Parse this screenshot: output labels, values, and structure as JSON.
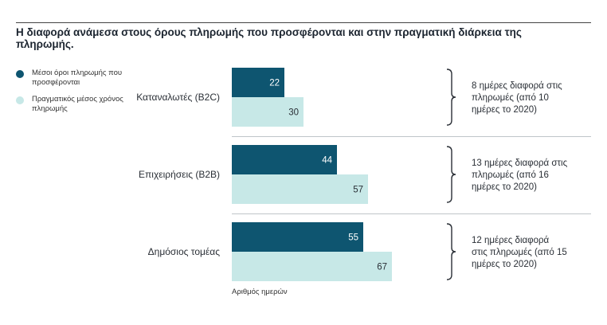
{
  "title": "Η διαφορά ανάμεσα στους όρους πληρωμής που προσφέρονται και στην πραγματική διάρκεια της πληρωμής.",
  "colors": {
    "offered": "#0e5570",
    "actual": "#c7e8e7",
    "offered_text": "#ffffff",
    "actual_text": "#2a2f36"
  },
  "legend": [
    {
      "label": "Μέσοι όροι πληρωμής που προσφέρονται",
      "color": "#0e5570"
    },
    {
      "label": "Πραγματικός μέσος χρόνος πληρωμής",
      "color": "#c7e8e7"
    }
  ],
  "chart_data": {
    "type": "bar",
    "orientation": "horizontal",
    "title": "Η διαφορά ανάμεσα στους όρους πληρωμής που προσφέρονται και στην πραγματική διάρκεια της πληρωμής.",
    "xlabel": "Αριθμός ημερών",
    "ylabel": "",
    "xlim": [
      0,
      100
    ],
    "legend_position": "left",
    "categories": [
      "Καταναλωτές (B2C)",
      "Επιχειρήσεις (B2B)",
      "Δημόσιος τομέας"
    ],
    "series": [
      {
        "name": "Μέσοι όροι πληρωμής που προσφέρονται",
        "values": [
          22,
          44,
          55
        ]
      },
      {
        "name": "Πραγματικός μέσος χρόνος πληρωμής",
        "values": [
          30,
          57,
          67
        ]
      }
    ],
    "annotations": [
      [
        "8 ημέρες διαφορά στις",
        "πληρωμές (από 10",
        "ημέρες το 2020)"
      ],
      [
        "13 ημέρες διαφορά στις",
        "πληρωμές (από 16",
        "ημέρες το 2020)"
      ],
      [
        "12 ημέρες διαφορά",
        "στις πληρωμές (από 15",
        "ημέρες το 2020)"
      ]
    ]
  }
}
